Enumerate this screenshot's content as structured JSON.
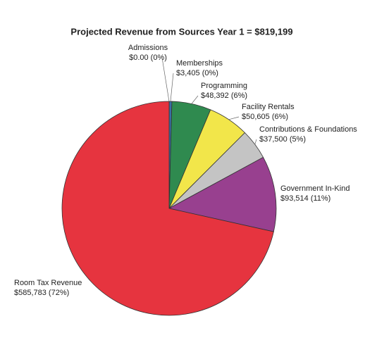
{
  "chart_data": {
    "type": "pie",
    "title": "Projected Revenue from Sources Year 1 = $819,199",
    "categories": [
      "Admissions",
      "Memberships",
      "Programming",
      "Facility Rentals",
      "Contributions & Foundations",
      "Government In-Kind",
      "Room Tax Revenue"
    ],
    "values": [
      0,
      3405,
      48392,
      50605,
      37500,
      93514,
      585783
    ],
    "value_labels": [
      "$0.00 (0%)",
      "$3,405 (0%)",
      "$48,392 (6%)",
      "$50,605 (6%)",
      "$37,500 (5%)",
      "$93,514 (11%)",
      "$585,783 (72%)"
    ],
    "colors": [
      "#9a9a9a",
      "#3a6ea5",
      "#2f8a4f",
      "#f2e64a",
      "#c4c4c4",
      "#98408f",
      "#e6343f"
    ]
  }
}
